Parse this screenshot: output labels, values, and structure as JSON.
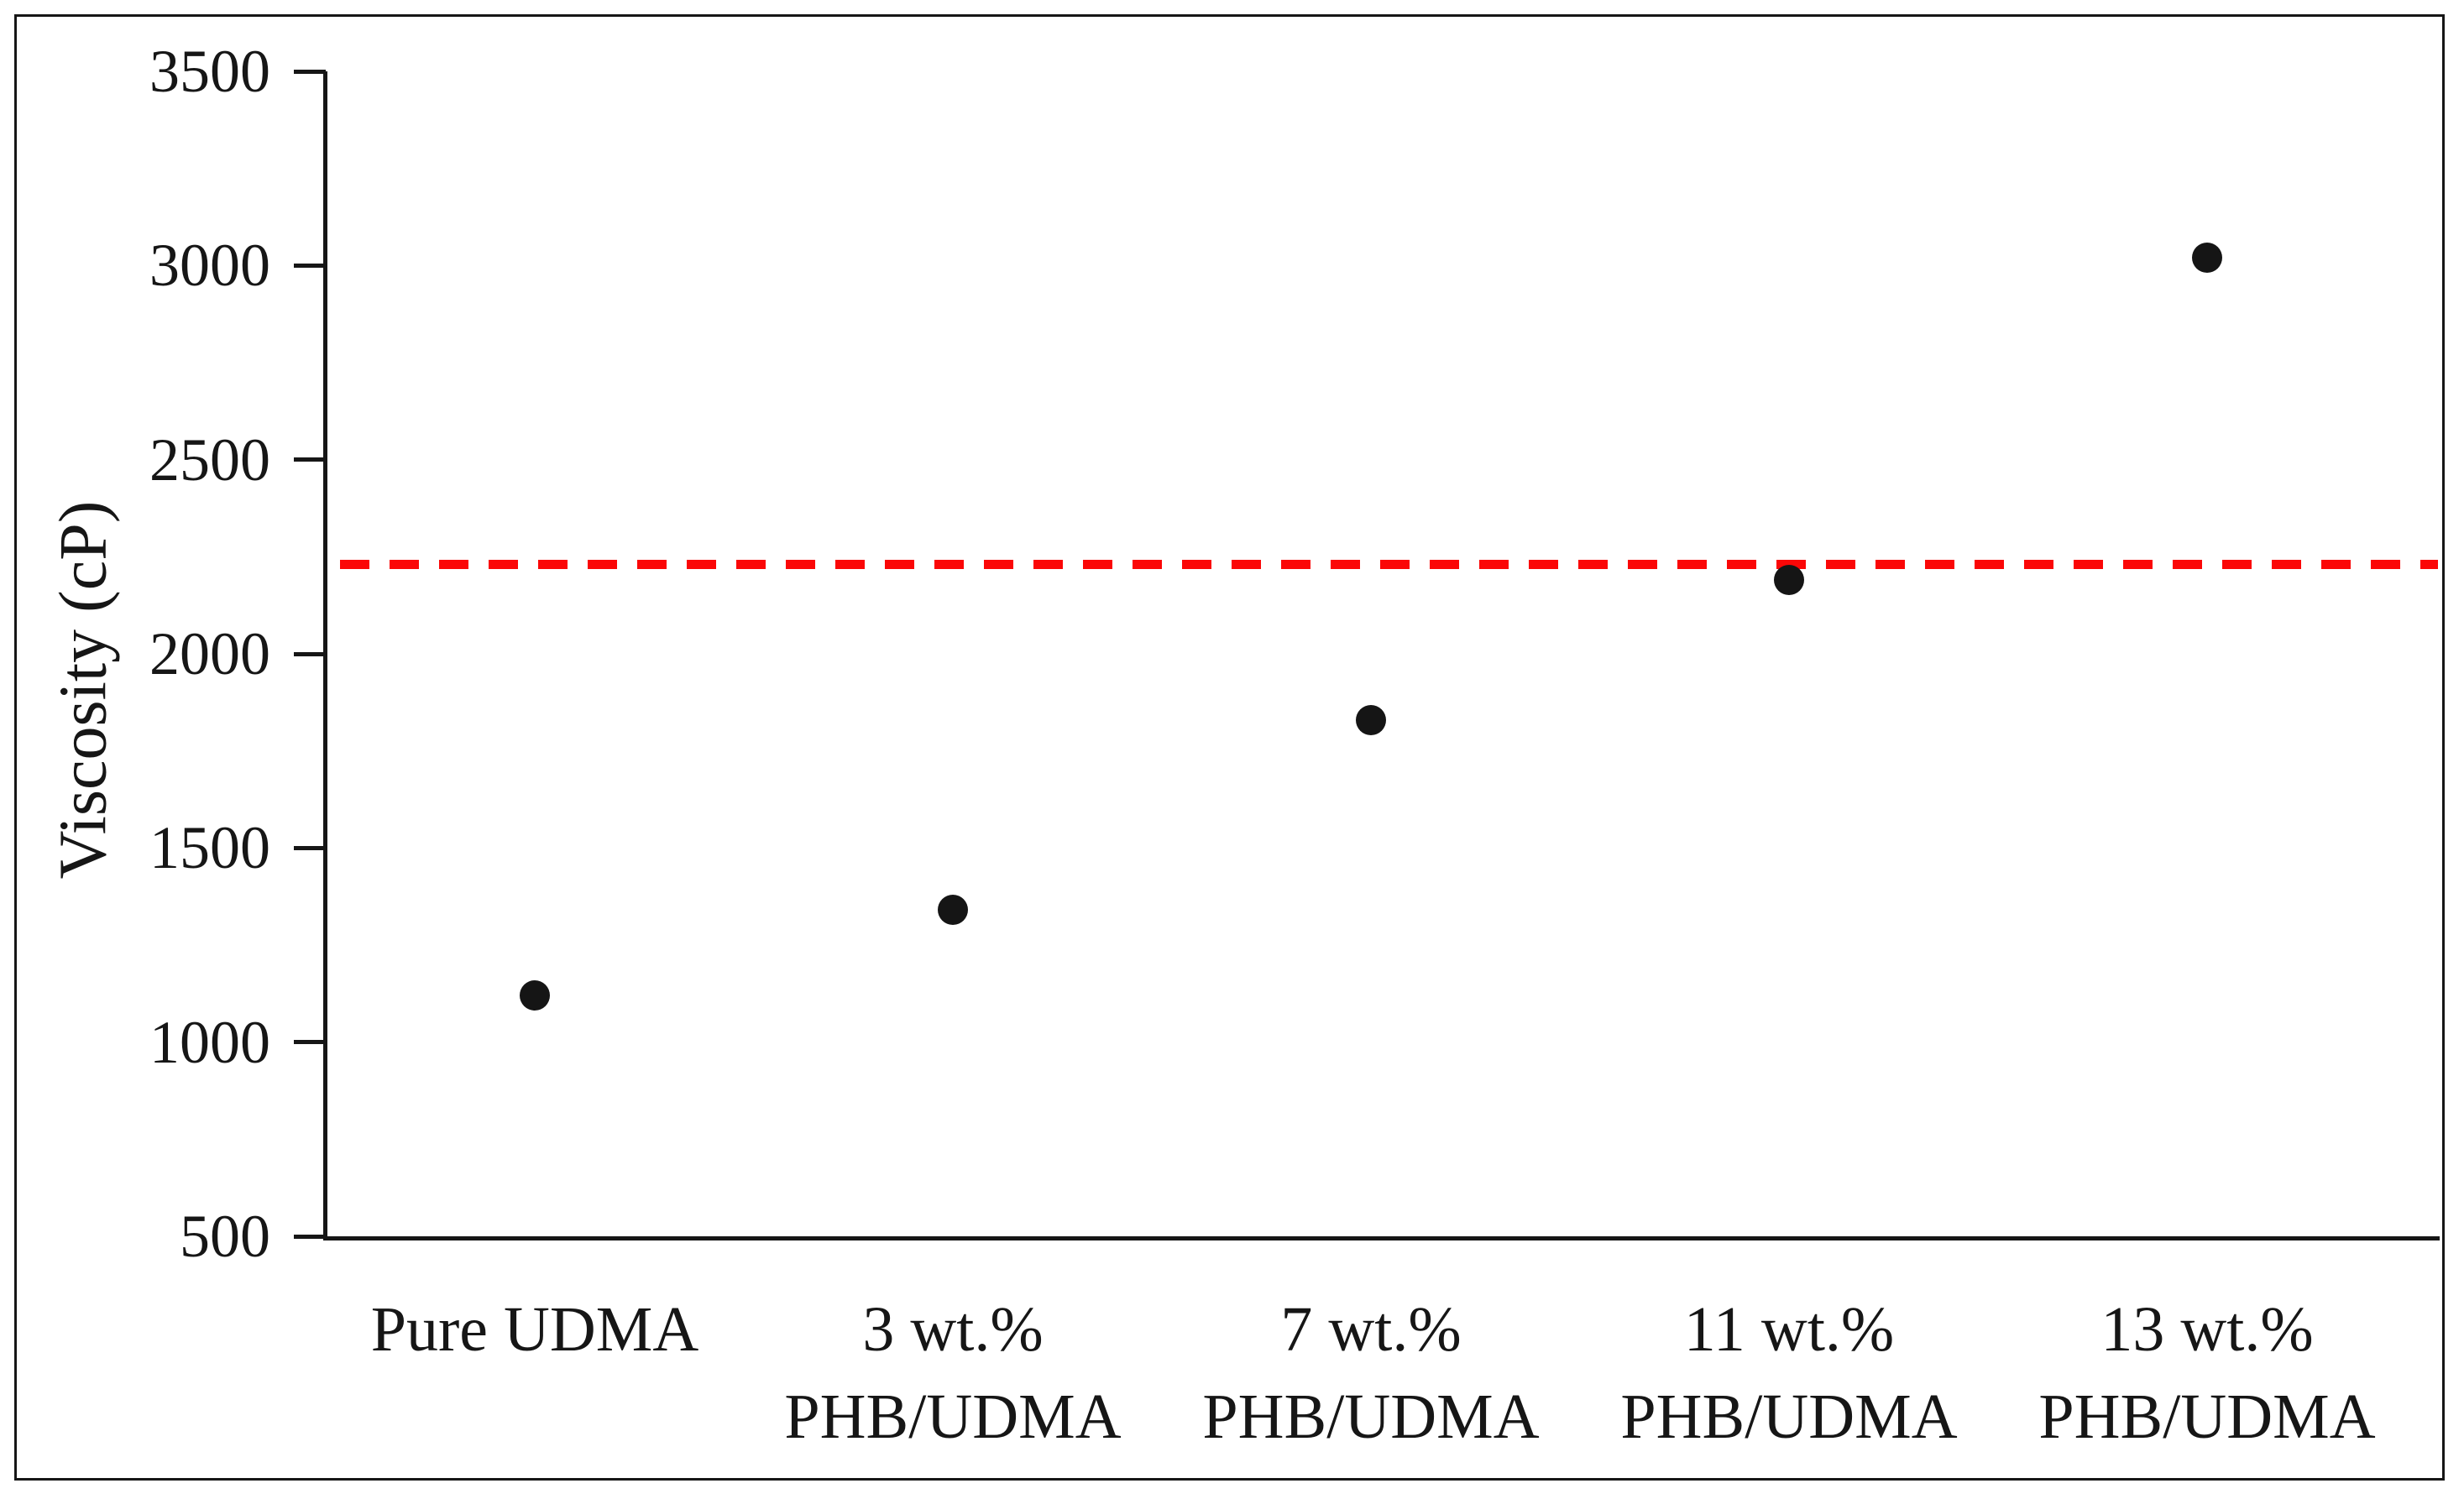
{
  "figure": {
    "background_color": "#ffffff",
    "frame_color": "#161616",
    "axis_color": "#161616",
    "text_color": "#161616"
  },
  "chart_data": {
    "type": "scatter",
    "title": "",
    "xlabel": "",
    "ylabel": "Viscosity (cP)",
    "categories": [
      [
        "Pure UDMA"
      ],
      [
        "3 wt.%",
        "PHB/UDMA"
      ],
      [
        "7 wt.%",
        "PHB/UDMA"
      ],
      [
        "11 wt.%",
        "PHB/UDMA"
      ],
      [
        "13 wt.%",
        "PHB/UDMA"
      ]
    ],
    "values": [
      1120,
      1340,
      1830,
      2190,
      3020
    ],
    "point_color": "#151515",
    "ylim": [
      500,
      3500
    ],
    "ytick_step": 500,
    "ytick_labels": [
      "3500",
      "3000",
      "2500",
      "2000",
      "1500",
      "1000",
      "500"
    ],
    "grid": false,
    "legend": false,
    "reference_line": {
      "value": 2230,
      "color": "#fb0707",
      "style": "dashed"
    }
  }
}
